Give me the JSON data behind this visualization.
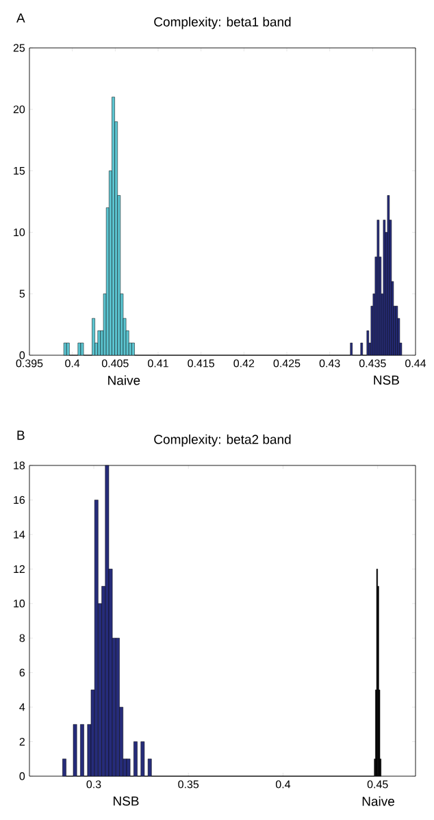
{
  "chart_data": [
    {
      "type": "histogram",
      "title": "Complexity: beta1 band",
      "annotations": [
        "A",
        {
          "text": "Naive",
          "x": 0.406,
          "y": 0
        },
        {
          "text": "NSB",
          "x": 0.4366,
          "y": 0
        }
      ],
      "bins": [
        0.399,
        0.39933,
        0.39966,
        0.40065,
        0.40098,
        0.40131,
        0.4023,
        0.40263,
        0.40296,
        0.40329,
        0.40362,
        0.40395,
        0.40428,
        0.40461,
        0.40494,
        0.40527,
        0.4056,
        0.40593,
        0.40626,
        0.40659,
        0.40692,
        0.40725,
        0.4324,
        0.43264,
        0.4336,
        0.43384,
        0.43432,
        0.43456,
        0.4348,
        0.43504,
        0.43528,
        0.43552,
        0.43576,
        0.436,
        0.43624,
        0.43648,
        0.43672,
        0.43696,
        0.4372,
        0.43744,
        0.43768,
        0.43792,
        0.43816,
        0.4384
      ],
      "values": [
        1,
        1,
        0,
        1,
        1,
        0,
        3,
        1,
        2,
        2,
        5,
        12,
        15,
        21,
        19,
        13,
        5,
        3,
        2,
        1,
        1,
        0,
        1,
        0,
        1,
        0,
        2,
        1,
        4,
        5,
        8,
        11,
        8,
        5,
        11,
        10,
        13,
        11,
        6,
        4,
        4,
        3,
        1
      ],
      "colors": [
        "#5bc4d0",
        "#5bc4d0",
        "#5bc4d0",
        "#5bc4d0",
        "#5bc4d0",
        "#5bc4d0",
        "#5bc4d0",
        "#5bc4d0",
        "#5bc4d0",
        "#5bc4d0",
        "#5bc4d0",
        "#5bc4d0",
        "#5bc4d0",
        "#5bc4d0",
        "#5bc4d0",
        "#5bc4d0",
        "#5bc4d0",
        "#5bc4d0",
        "#5bc4d0",
        "#5bc4d0",
        "#5bc4d0",
        "#262c7a",
        "#262c7a",
        "#262c7a",
        "#262c7a",
        "#262c7a",
        "#262c7a",
        "#262c7a",
        "#262c7a",
        "#262c7a",
        "#262c7a",
        "#262c7a",
        "#262c7a",
        "#262c7a",
        "#262c7a",
        "#262c7a",
        "#262c7a",
        "#262c7a",
        "#262c7a",
        "#262c7a",
        "#262c7a",
        "#262c7a",
        "#262c7a"
      ],
      "xlim": [
        0.395,
        0.44
      ],
      "xticks": [
        {
          "value": 0.395,
          "label": "0.395"
        },
        {
          "value": 0.4,
          "label": "0.4"
        },
        {
          "value": 0.405,
          "label": "0.405"
        },
        {
          "value": 0.41,
          "label": "0.41"
        },
        {
          "value": 0.415,
          "label": "0.415"
        },
        {
          "value": 0.42,
          "label": "0.42"
        },
        {
          "value": 0.425,
          "label": "0.425"
        },
        {
          "value": 0.43,
          "label": "0.43"
        },
        {
          "value": 0.435,
          "label": "0.435"
        },
        {
          "value": 0.44,
          "label": "0.44"
        }
      ],
      "ylim": [
        0,
        25
      ],
      "yticks": [
        {
          "value": 0,
          "label": "0"
        },
        {
          "value": 5,
          "label": "5"
        },
        {
          "value": 10,
          "label": "10"
        },
        {
          "value": 15,
          "label": "15"
        },
        {
          "value": 20,
          "label": "20"
        },
        {
          "value": 25,
          "label": "25"
        }
      ],
      "grid": false
    },
    {
      "type": "histogram",
      "title": "Complexity: beta2 band",
      "annotations": [
        "B",
        {
          "text": "NSB",
          "x": 0.317,
          "y": 0
        },
        {
          "text": "Naive",
          "x": 0.4503,
          "y": 0
        }
      ],
      "bins": [
        0.2835,
        0.28538,
        0.28914,
        0.29102,
        0.2929,
        0.29478,
        0.29666,
        0.29854,
        0.30042,
        0.3023,
        0.30418,
        0.30606,
        0.30794,
        0.30982,
        0.3117,
        0.31358,
        0.31546,
        0.31734,
        0.31922,
        0.3211,
        0.32298,
        0.32486,
        0.32674,
        0.32862,
        0.3305,
        0.4482,
        0.4488,
        0.4494,
        0.45,
        0.4506,
        0.4512,
        0.4518
      ],
      "values": [
        1,
        0,
        3,
        0,
        3,
        0,
        3,
        5,
        16,
        10,
        11,
        18,
        12,
        8,
        8,
        4,
        1,
        1,
        0,
        2,
        0,
        2,
        0,
        1,
        0,
        1,
        5,
        12,
        11,
        5,
        1
      ],
      "colors": [
        "#262c7a",
        "#262c7a",
        "#262c7a",
        "#262c7a",
        "#262c7a",
        "#262c7a",
        "#262c7a",
        "#262c7a",
        "#262c7a",
        "#262c7a",
        "#262c7a",
        "#262c7a",
        "#262c7a",
        "#262c7a",
        "#262c7a",
        "#262c7a",
        "#262c7a",
        "#262c7a",
        "#262c7a",
        "#262c7a",
        "#262c7a",
        "#262c7a",
        "#262c7a",
        "#262c7a",
        "#262c7a",
        "#000000",
        "#000000",
        "#000000",
        "#000000",
        "#000000",
        "#000000"
      ],
      "xlim": [
        0.266,
        0.47
      ],
      "xticks": [
        {
          "value": 0.3,
          "label": "0.3"
        },
        {
          "value": 0.35,
          "label": "0.35"
        },
        {
          "value": 0.4,
          "label": "0.4"
        },
        {
          "value": 0.45,
          "label": "0.45"
        }
      ],
      "ylim": [
        0,
        18
      ],
      "yticks": [
        {
          "value": 0,
          "label": "0"
        },
        {
          "value": 2,
          "label": "2"
        },
        {
          "value": 4,
          "label": "4"
        },
        {
          "value": 6,
          "label": "6"
        },
        {
          "value": 8,
          "label": "8"
        },
        {
          "value": 10,
          "label": "10"
        },
        {
          "value": 12,
          "label": "12"
        },
        {
          "value": 14,
          "label": "14"
        },
        {
          "value": 16,
          "label": "16"
        },
        {
          "value": 18,
          "label": "18"
        }
      ],
      "grid": false
    }
  ]
}
